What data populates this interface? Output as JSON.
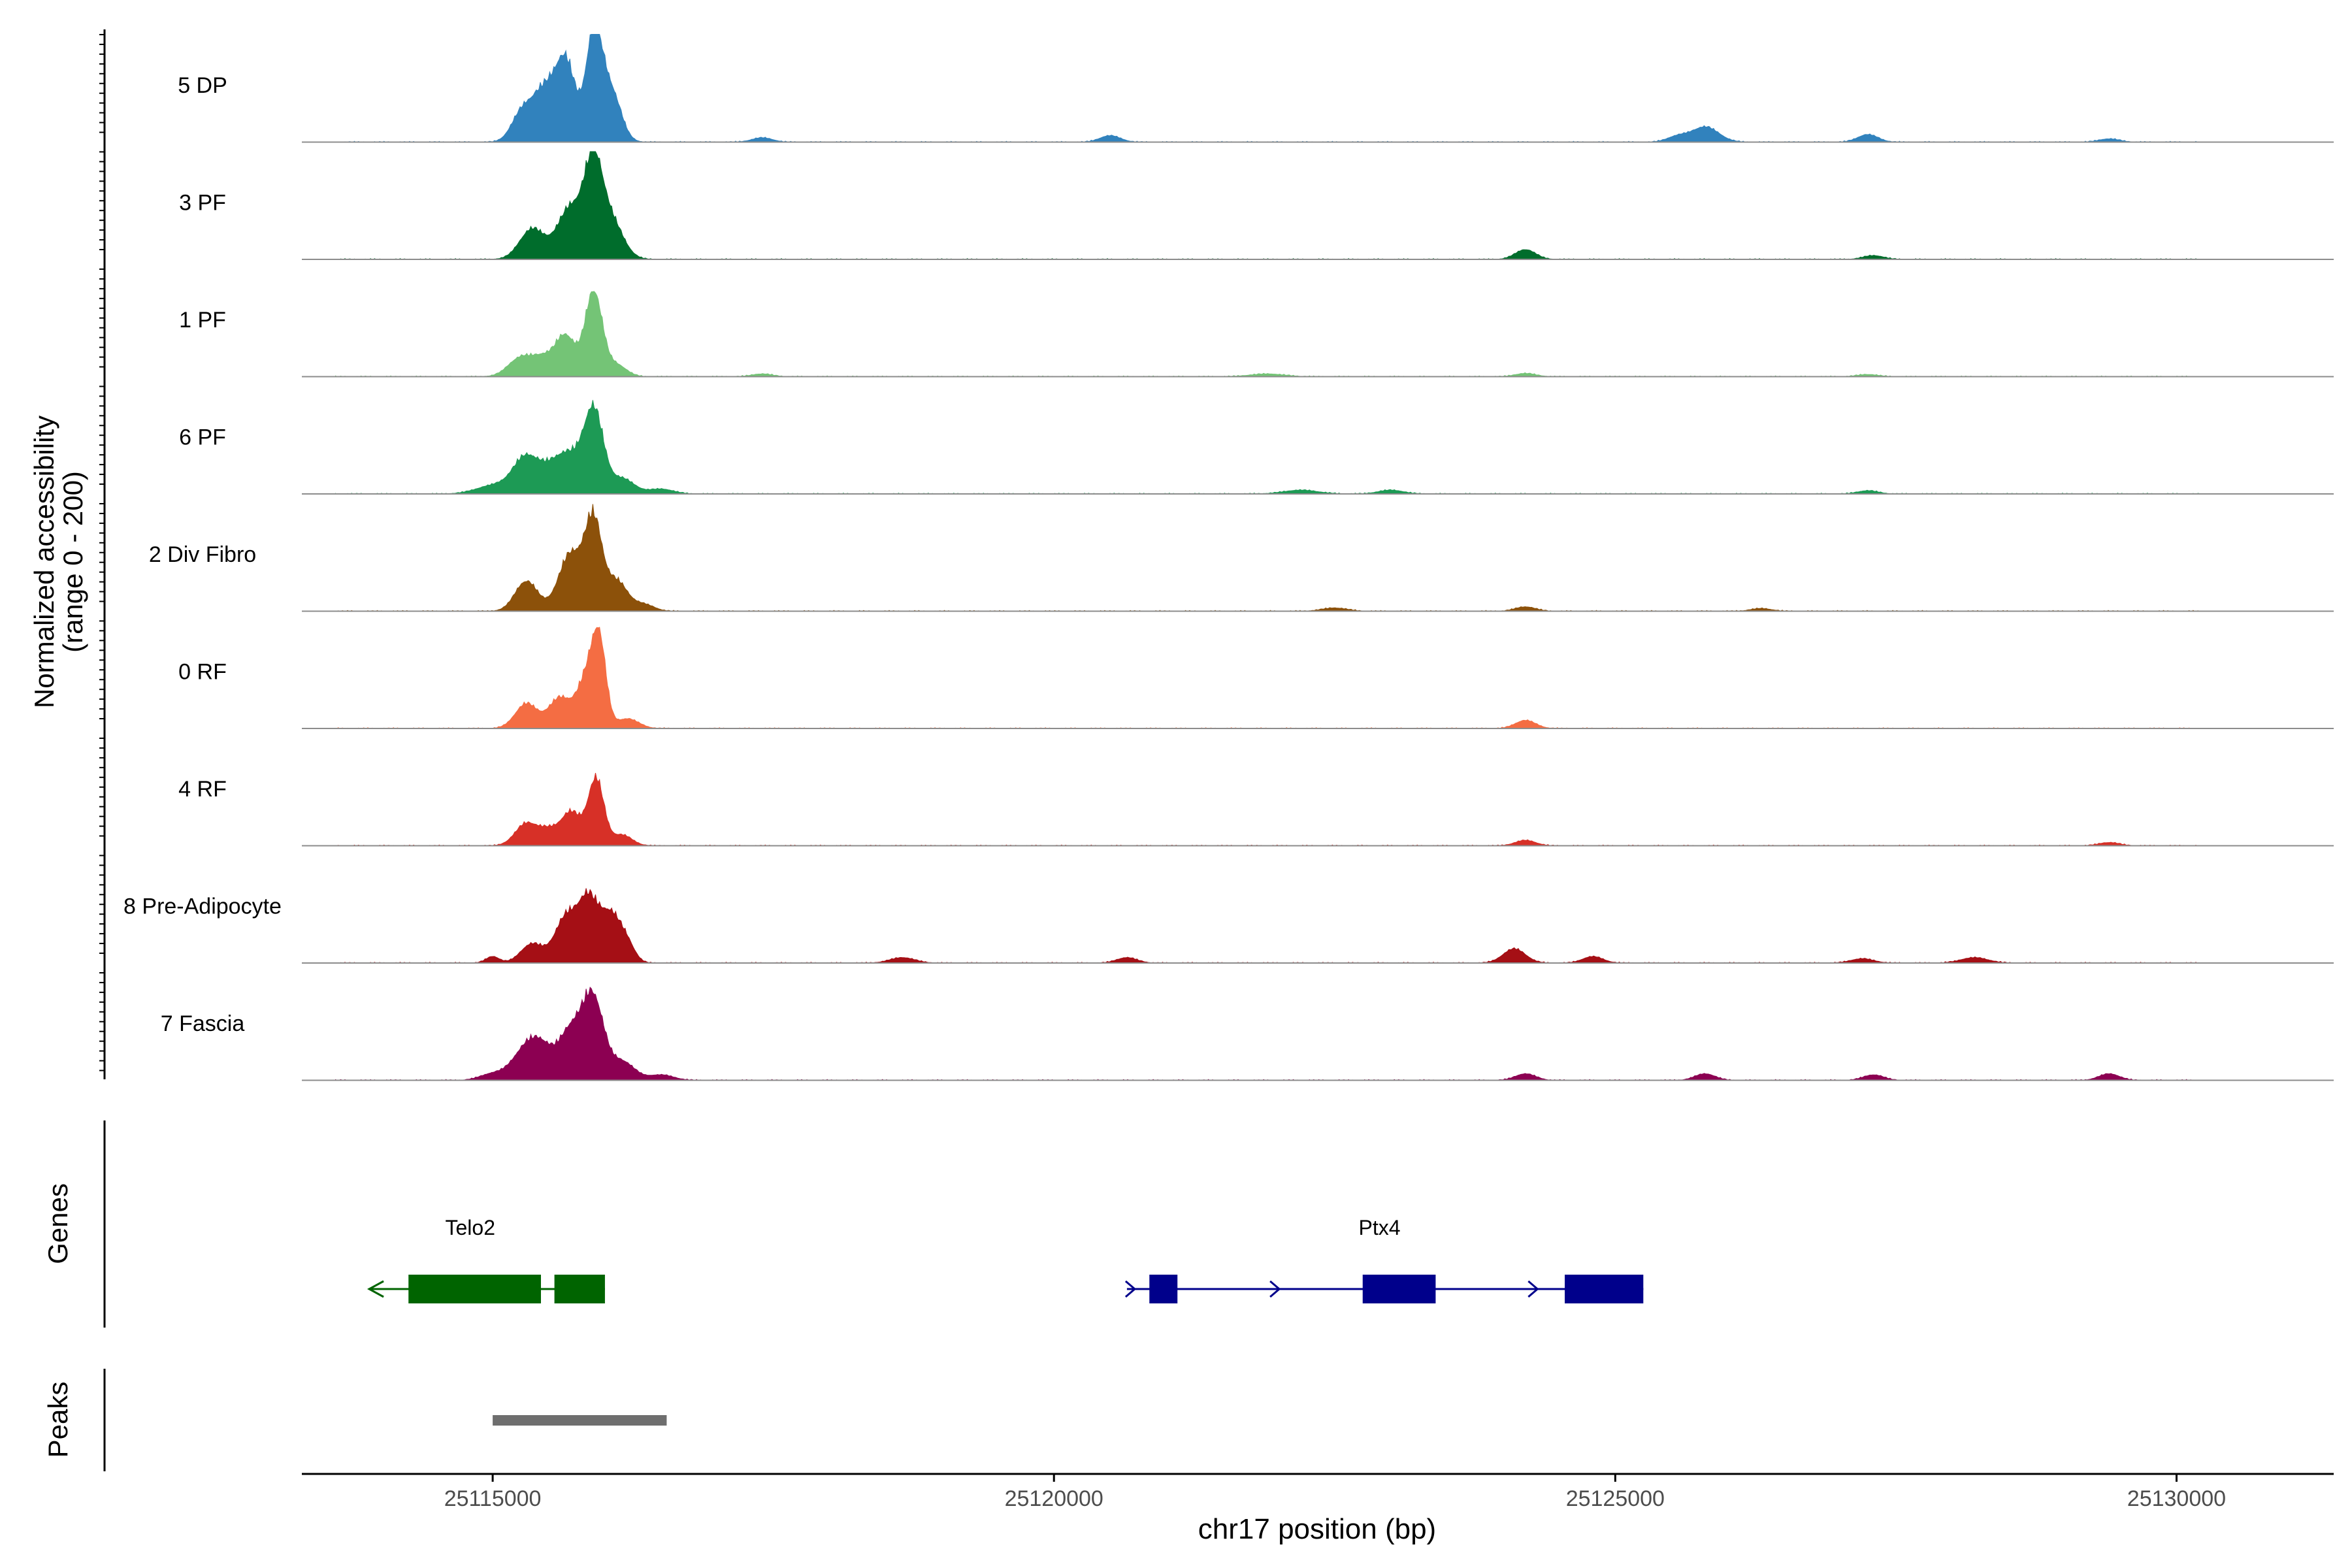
{
  "chart_data": {
    "type": "area",
    "title": "",
    "xlabel": "chr17 position (bp)",
    "ylabel_line1": "Normalized accessibility",
    "ylabel_line2": "(range 0 - 200)",
    "xlim": [
      25113300,
      25131400
    ],
    "x_ticks": [
      25115000,
      25120000,
      25125000,
      25130000
    ],
    "x_tick_labels": [
      "25115000",
      "25120000",
      "25125000",
      "25130000"
    ],
    "y_range": [
      0,
      200
    ],
    "track_range": [
      25113600,
      25130200
    ],
    "tracks": [
      {
        "name": "5 DP",
        "color": "#3182BD",
        "peaks": [
          [
            25115250,
            45,
            90
          ],
          [
            25115450,
            90,
            110
          ],
          [
            25115650,
            140,
            90
          ],
          [
            25115900,
            190,
            70
          ],
          [
            25116050,
            95,
            90
          ],
          [
            25117400,
            8,
            90
          ],
          [
            25120500,
            12,
            90
          ],
          [
            25125800,
            28,
            120
          ],
          [
            25125550,
            10,
            90
          ],
          [
            25127250,
            14,
            90
          ],
          [
            25129400,
            6,
            90
          ]
        ]
      },
      {
        "name": "3 PF",
        "color": "#006D2C",
        "peaks": [
          [
            25115350,
            55,
            110
          ],
          [
            25115700,
            95,
            120
          ],
          [
            25115900,
            150,
            80
          ],
          [
            25116050,
            70,
            110
          ],
          [
            25124200,
            18,
            90
          ],
          [
            25127300,
            7,
            90
          ]
        ]
      },
      {
        "name": "1 PF",
        "color": "#74C476",
        "peaks": [
          [
            25115250,
            35,
            110
          ],
          [
            25115450,
            30,
            90
          ],
          [
            25115650,
            75,
            90
          ],
          [
            25115900,
            155,
            75
          ],
          [
            25116100,
            22,
            90
          ],
          [
            25117400,
            5,
            90
          ],
          [
            25121900,
            5,
            150
          ],
          [
            25124200,
            6,
            90
          ],
          [
            25127250,
            4,
            90
          ]
        ]
      },
      {
        "name": "6 PF",
        "color": "#1D9A55",
        "peaks": [
          [
            25115000,
            15,
            150
          ],
          [
            25115300,
            65,
            120
          ],
          [
            25115650,
            75,
            150
          ],
          [
            25115900,
            140,
            85
          ],
          [
            25116150,
            28,
            110
          ],
          [
            25116500,
            9,
            110
          ],
          [
            25122200,
            7,
            150
          ],
          [
            25123000,
            7,
            110
          ],
          [
            25127250,
            6,
            90
          ]
        ]
      },
      {
        "name": "2 Div Fibro",
        "color": "#8C510A",
        "peaks": [
          [
            25115300,
            55,
            100
          ],
          [
            25115700,
            105,
            110
          ],
          [
            25115900,
            150,
            75
          ],
          [
            25116100,
            55,
            100
          ],
          [
            25116350,
            12,
            90
          ],
          [
            25122500,
            6,
            110
          ],
          [
            25124200,
            8,
            90
          ],
          [
            25126300,
            5,
            90
          ]
        ]
      },
      {
        "name": "0 RF",
        "color": "#F46D43",
        "peaks": [
          [
            25115300,
            45,
            100
          ],
          [
            25115600,
            55,
            100
          ],
          [
            25115850,
            95,
            90
          ],
          [
            25115950,
            130,
            60
          ],
          [
            25116200,
            18,
            100
          ],
          [
            25124200,
            15,
            90
          ]
        ]
      },
      {
        "name": "4 RF",
        "color": "#D73027",
        "peaks": [
          [
            25115300,
            40,
            100
          ],
          [
            25115500,
            25,
            90
          ],
          [
            25115700,
            60,
            90
          ],
          [
            25115920,
            120,
            70
          ],
          [
            25116150,
            20,
            90
          ],
          [
            25124200,
            10,
            90
          ],
          [
            25129400,
            6,
            90
          ]
        ]
      },
      {
        "name": "8 Pre-Adipocyte",
        "color": "#A50F15",
        "peaks": [
          [
            25115000,
            12,
            60
          ],
          [
            25115350,
            35,
            100
          ],
          [
            25115650,
            80,
            100
          ],
          [
            25115850,
            110,
            90
          ],
          [
            25116050,
            85,
            90
          ],
          [
            25116200,
            30,
            70
          ],
          [
            25118650,
            10,
            110
          ],
          [
            25120650,
            10,
            90
          ],
          [
            25124100,
            26,
            100
          ],
          [
            25124800,
            12,
            90
          ],
          [
            25127200,
            8,
            100
          ],
          [
            25128200,
            10,
            120
          ]
        ]
      },
      {
        "name": "7 Fascia",
        "color": "#8C0052",
        "peaks": [
          [
            25115000,
            12,
            110
          ],
          [
            25115300,
            60,
            120
          ],
          [
            25115450,
            40,
            90
          ],
          [
            25115700,
            95,
            110
          ],
          [
            25115900,
            140,
            90
          ],
          [
            25116150,
            35,
            110
          ],
          [
            25116500,
            10,
            110
          ],
          [
            25124200,
            12,
            90
          ],
          [
            25125800,
            12,
            90
          ],
          [
            25127300,
            10,
            90
          ],
          [
            25129400,
            12,
            90
          ]
        ]
      }
    ],
    "genes": [
      {
        "name": "Telo2",
        "strand": "-",
        "start": 25113900,
        "end": 25116000,
        "exons": [
          [
            25114250,
            25115430
          ],
          [
            25115550,
            25116000
          ]
        ],
        "color": "#006400"
      },
      {
        "name": "Ptx4",
        "strand": "+",
        "start": 25120650,
        "end": 25125250,
        "exons": [
          [
            25120850,
            25121100
          ],
          [
            25122750,
            25123400
          ],
          [
            25124550,
            25125250
          ]
        ],
        "color": "#00008B"
      }
    ],
    "peaks_track": [
      {
        "start": 25115000,
        "end": 25116550
      }
    ],
    "track_labels": {
      "genes": "Genes",
      "peaks": "Peaks"
    }
  }
}
